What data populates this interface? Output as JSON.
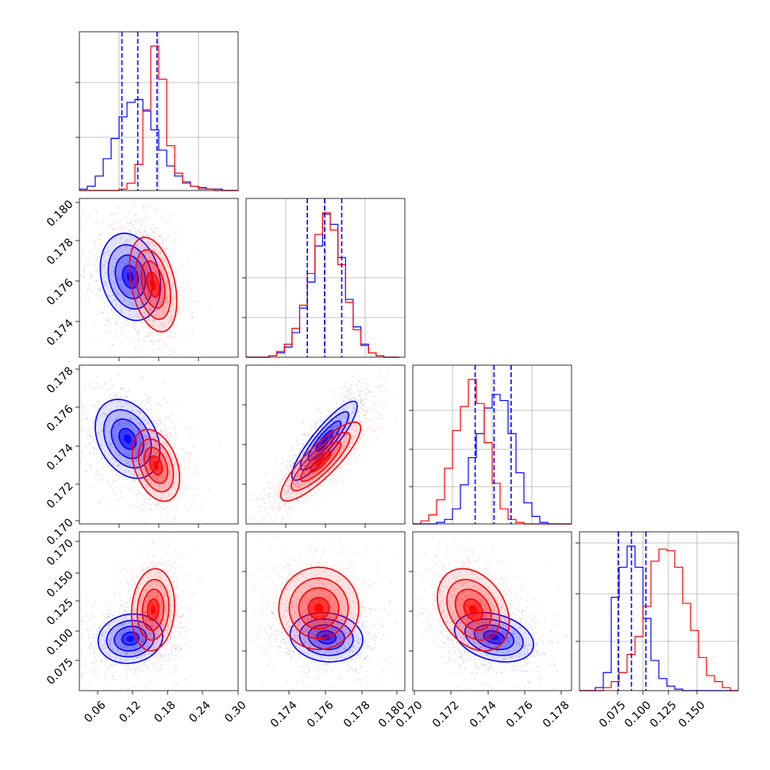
{
  "colors": {
    "blue": "#0000ff",
    "red": "#ff0000",
    "grid": "#b0b0b0",
    "frame": "#000000"
  },
  "chart_data": [
    {
      "type": "histogram",
      "name": "panel-hist-1",
      "xlim": [
        0.02,
        0.3
      ],
      "ticks_x": [
        "0.06",
        "0.12",
        "0.18",
        "0.24",
        "0.30"
      ],
      "quantiles_blue": [
        0.095,
        0.123,
        0.157
      ],
      "series": [
        {
          "name": "",
          "color": "blue",
          "edges": [
            0.02,
            0.034,
            0.048,
            0.062,
            0.076,
            0.09,
            0.104,
            0.118,
            0.132,
            0.146,
            0.16,
            0.174,
            0.188,
            0.202,
            0.216,
            0.23,
            0.244,
            0.258,
            0.272,
            0.286,
            0.3
          ],
          "heights": [
            1,
            3,
            10,
            22,
            36,
            51,
            61,
            63,
            55,
            42,
            28,
            17,
            10,
            6,
            3,
            2,
            1,
            1,
            0,
            0
          ]
        },
        {
          "name": "",
          "color": "red",
          "edges": [
            0.02,
            0.034,
            0.048,
            0.062,
            0.076,
            0.09,
            0.104,
            0.118,
            0.132,
            0.146,
            0.16,
            0.174,
            0.188,
            0.202,
            0.216,
            0.23,
            0.244,
            0.258,
            0.272,
            0.286,
            0.3
          ],
          "heights": [
            0,
            0,
            0,
            0,
            0,
            1,
            5,
            18,
            56,
            100,
            77,
            31,
            12,
            5,
            3,
            1,
            1,
            0,
            0,
            0
          ]
        }
      ]
    },
    {
      "type": "scatter-contour",
      "name": "panel-2-1",
      "xlim": [
        0.02,
        0.3
      ],
      "ylim": [
        0.172,
        0.1803
      ],
      "ticks_y": [
        "0.180",
        "0.178",
        "0.176",
        "0.174"
      ],
      "series": [
        {
          "name": "",
          "color": "blue",
          "cx": 0.11,
          "cy": 0.1762,
          "sx": 0.028,
          "sy": 0.0012,
          "rho": -0.2
        },
        {
          "name": "",
          "color": "red",
          "cx": 0.15,
          "cy": 0.1758,
          "sx": 0.022,
          "sy": 0.0013,
          "rho": -0.35
        }
      ]
    },
    {
      "type": "histogram",
      "name": "panel-hist-2",
      "xlim": [
        0.172,
        0.1803
      ],
      "quantiles_blue": [
        0.1752,
        0.1761,
        0.177
      ],
      "series": [
        {
          "name": "",
          "color": "blue",
          "edges": [
            0.172,
            0.1724,
            0.1728,
            0.1732,
            0.1736,
            0.174,
            0.1744,
            0.1748,
            0.1752,
            0.1756,
            0.176,
            0.1764,
            0.1768,
            0.1772,
            0.1776,
            0.178,
            0.1784,
            0.1788,
            0.1792,
            0.1796,
            0.18
          ],
          "heights": [
            0,
            0,
            0,
            1,
            3,
            7,
            17,
            34,
            52,
            77,
            99,
            92,
            69,
            40,
            21,
            9,
            3,
            1,
            0,
            0
          ]
        },
        {
          "name": "",
          "color": "red",
          "edges": [
            0.172,
            0.1724,
            0.1728,
            0.1732,
            0.1736,
            0.174,
            0.1744,
            0.1748,
            0.1752,
            0.1756,
            0.176,
            0.1764,
            0.1768,
            0.1772,
            0.1776,
            0.178,
            0.1784,
            0.1788,
            0.1792,
            0.1796,
            0.18
          ],
          "heights": [
            0,
            0,
            0,
            1,
            4,
            9,
            20,
            36,
            58,
            85,
            100,
            88,
            64,
            38,
            19,
            8,
            3,
            1,
            0,
            0
          ]
        }
      ]
    },
    {
      "type": "scatter-contour",
      "name": "panel-3-1",
      "xlim": [
        0.02,
        0.3
      ],
      "ylim": [
        0.1698,
        0.1782
      ],
      "ticks_y": [
        "0.178",
        "0.176",
        "0.174",
        "0.172",
        "0.170"
      ],
      "series": [
        {
          "name": "",
          "color": "blue",
          "cx": 0.105,
          "cy": 0.1743,
          "sx": 0.03,
          "sy": 0.0011,
          "rho": -0.3
        },
        {
          "name": "",
          "color": "red",
          "cx": 0.155,
          "cy": 0.1729,
          "sx": 0.022,
          "sy": 0.001,
          "rho": -0.35
        }
      ]
    },
    {
      "type": "scatter-contour",
      "name": "panel-3-2",
      "xlim": [
        0.172,
        0.1803
      ],
      "ylim": [
        0.1698,
        0.1782
      ],
      "series": [
        {
          "name": "",
          "color": "blue",
          "cx": 0.1761,
          "cy": 0.1742,
          "sx": 0.0009,
          "sy": 0.0011,
          "rho": 0.88
        },
        {
          "name": "",
          "color": "red",
          "cx": 0.1759,
          "cy": 0.1731,
          "sx": 0.0011,
          "sy": 0.0011,
          "rho": 0.85
        }
      ]
    },
    {
      "type": "histogram",
      "name": "panel-hist-3",
      "xlim": [
        0.1698,
        0.1782
      ],
      "quantiles_blue": [
        0.1731,
        0.1741,
        0.175
      ],
      "series": [
        {
          "name": "",
          "color": "blue",
          "edges": [
            0.1698,
            0.17022,
            0.17064,
            0.17106,
            0.17148,
            0.1719,
            0.17232,
            0.17274,
            0.17316,
            0.17358,
            0.174,
            0.17442,
            0.17484,
            0.17526,
            0.17568,
            0.1761,
            0.17652,
            0.17694,
            0.17736,
            0.17778,
            0.1782
          ],
          "heights": [
            0,
            0,
            0,
            1,
            3,
            10,
            26,
            44,
            60,
            77,
            86,
            82,
            60,
            34,
            14,
            5,
            1,
            0,
            0,
            0
          ]
        },
        {
          "name": "",
          "color": "red",
          "edges": [
            0.1698,
            0.17022,
            0.17064,
            0.17106,
            0.17148,
            0.1719,
            0.17232,
            0.17274,
            0.17316,
            0.17358,
            0.174,
            0.17442,
            0.17484,
            0.17526,
            0.17568,
            0.1761,
            0.17652,
            0.17694,
            0.17736,
            0.17778,
            0.1782
          ],
          "heights": [
            0,
            2,
            6,
            16,
            37,
            62,
            78,
            96,
            80,
            54,
            27,
            10,
            3,
            1,
            0,
            0,
            0,
            0,
            0,
            0
          ]
        }
      ]
    },
    {
      "type": "scatter-contour",
      "name": "panel-4-1",
      "xlim": [
        0.02,
        0.3
      ],
      "ylim": [
        0.058,
        0.168
      ],
      "ticks_y": [
        "0.170",
        "0.150",
        "0.125",
        "0.100",
        "0.075"
      ],
      "ticks_x": [
        "0.06",
        "0.12",
        "0.18",
        "0.24",
        "0.30"
      ],
      "series": [
        {
          "name": "",
          "color": "blue",
          "cx": 0.11,
          "cy": 0.094,
          "sx": 0.03,
          "sy": 0.009,
          "rho": 0.1
        },
        {
          "name": "",
          "color": "red",
          "cx": 0.15,
          "cy": 0.114,
          "sx": 0.02,
          "sy": 0.015,
          "rho": 0.1
        }
      ]
    },
    {
      "type": "scatter-contour",
      "name": "panel-4-2",
      "xlim": [
        0.172,
        0.1803
      ],
      "ylim": [
        0.058,
        0.168
      ],
      "ticks_x": [
        "0.174",
        "0.176",
        "0.178",
        "0.180"
      ],
      "series": [
        {
          "name": "",
          "color": "blue",
          "cx": 0.1762,
          "cy": 0.095,
          "sx": 0.001,
          "sy": 0.009,
          "rho": -0.1
        },
        {
          "name": "",
          "color": "red",
          "cx": 0.1758,
          "cy": 0.115,
          "sx": 0.0011,
          "sy": 0.015,
          "rho": 0.0
        }
      ]
    },
    {
      "type": "scatter-contour",
      "name": "panel-4-3",
      "xlim": [
        0.1698,
        0.1782
      ],
      "ylim": [
        0.058,
        0.168
      ],
      "ticks_x": [
        "0.170",
        "0.172",
        "0.174",
        "0.176",
        "0.178"
      ],
      "series": [
        {
          "name": "",
          "color": "blue",
          "cx": 0.1741,
          "cy": 0.095,
          "sx": 0.0011,
          "sy": 0.009,
          "rho": -0.3
        },
        {
          "name": "",
          "color": "red",
          "cx": 0.173,
          "cy": 0.114,
          "sx": 0.001,
          "sy": 0.015,
          "rho": -0.3
        }
      ]
    },
    {
      "type": "histogram",
      "name": "panel-hist-4",
      "xlim": [
        0.058,
        0.168
      ],
      "ticks_x": [
        "0.075",
        "0.100",
        "0.125",
        "0.150"
      ],
      "quantiles_blue": [
        0.085,
        0.094,
        0.104
      ],
      "series": [
        {
          "name": "",
          "color": "blue",
          "edges": [
            0.058,
            0.0635,
            0.069,
            0.0745,
            0.08,
            0.0855,
            0.091,
            0.0965,
            0.102,
            0.1075,
            0.113,
            0.1185,
            0.124,
            0.1295,
            0.135,
            0.1405,
            0.146,
            0.1515,
            0.157,
            0.1625,
            0.168
          ],
          "heights": [
            0,
            0,
            2,
            12,
            62,
            82,
            96,
            82,
            48,
            20,
            8,
            3,
            1,
            0,
            0,
            0,
            0,
            0,
            0,
            0
          ]
        },
        {
          "name": "",
          "color": "red",
          "edges": [
            0.058,
            0.0635,
            0.069,
            0.0745,
            0.08,
            0.0855,
            0.091,
            0.0965,
            0.102,
            0.1075,
            0.113,
            0.1185,
            0.124,
            0.1295,
            0.135,
            0.1405,
            0.146,
            0.1515,
            0.157,
            0.1625,
            0.168
          ],
          "heights": [
            0,
            0,
            0,
            2,
            6,
            12,
            24,
            36,
            56,
            86,
            94,
            93,
            82,
            58,
            40,
            22,
            10,
            6,
            2,
            0
          ]
        }
      ]
    }
  ]
}
